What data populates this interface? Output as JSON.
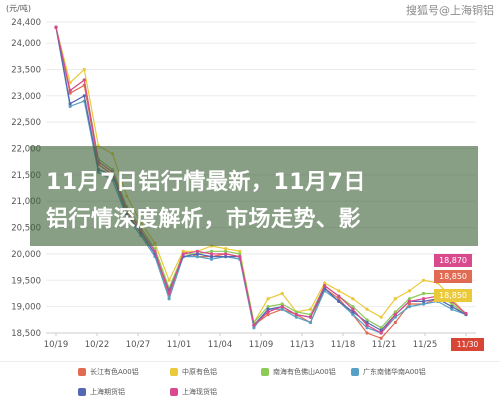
{
  "watermark": "搜狐号@上海铜铝",
  "banner": {
    "line1": "11月7日铝行情最新，11月7日",
    "line2": "铝行情深度解析，市场走势、影"
  },
  "price_tags": [
    {
      "label": "18,870",
      "color": "#d94a8c"
    },
    {
      "label": "18,850",
      "color": "#e06a52"
    },
    {
      "label": "18,850",
      "color": "#eac93a"
    }
  ],
  "date_tag": "11/30",
  "chart_data": {
    "type": "line",
    "ylabel": "(元/吨)",
    "ylim": [
      18500,
      24400
    ],
    "yticks": [
      "24,400",
      "24,000",
      "23,500",
      "23,000",
      "22,500",
      "22,000",
      "21,500",
      "21,000",
      "20,500",
      "20,000",
      "19,500",
      "19,000",
      "18,500"
    ],
    "xticks": [
      "10/19",
      "10/22",
      "10/27",
      "11/01",
      "11/04",
      "11/09",
      "11/13",
      "11/18",
      "11/21",
      "11/25",
      "11/30"
    ],
    "series": [
      {
        "name": "长江有色A00铝",
        "color": "#e06a52",
        "values": [
          24300,
          23050,
          23200,
          21700,
          21500,
          20800,
          20400,
          20000,
          19200,
          20050,
          19950,
          19950,
          20000,
          19950,
          18650,
          18850,
          18950,
          18850,
          18700,
          19350,
          19150,
          18850,
          18500,
          18400,
          18700,
          19050,
          19050,
          19150,
          19000,
          18850
        ]
      },
      {
        "name": "中原有色铝",
        "color": "#eac93a",
        "values": [
          24300,
          23250,
          23500,
          22050,
          21900,
          21100,
          20600,
          20200,
          19500,
          20050,
          20050,
          20150,
          20100,
          20050,
          18700,
          19150,
          19250,
          18900,
          18950,
          19450,
          19300,
          19150,
          18950,
          18800,
          19150,
          19300,
          19500,
          19450,
          19150,
          18850
        ]
      },
      {
        "name": "南海有色佛山A00铝",
        "color": "#8cc955",
        "values": [
          24300,
          23100,
          23300,
          21800,
          21600,
          20900,
          20500,
          20100,
          19350,
          20000,
          20000,
          20050,
          20050,
          20000,
          18700,
          19000,
          19050,
          18900,
          18850,
          19400,
          19200,
          19000,
          18750,
          18600,
          18900,
          19150,
          19250,
          19250,
          19050,
          18850
        ]
      },
      {
        "name": "广东南储华南A00铝",
        "color": "#55a0c4",
        "values": [
          24300,
          22800,
          22900,
          21550,
          21400,
          20700,
          20350,
          19950,
          19150,
          19950,
          19950,
          19900,
          19950,
          19900,
          18600,
          18950,
          18950,
          18800,
          18700,
          19300,
          19100,
          18850,
          18600,
          18500,
          18800,
          19000,
          19050,
          19100,
          18950,
          18850
        ]
      },
      {
        "name": "上海期货铝",
        "color": "#5566b5",
        "values": [
          24300,
          22850,
          23000,
          21600,
          21500,
          20750,
          20400,
          20000,
          19300,
          19950,
          20000,
          19950,
          19950,
          19950,
          18650,
          18950,
          19000,
          18850,
          18800,
          19350,
          19100,
          18900,
          18700,
          18550,
          18850,
          19100,
          19100,
          19150,
          19000,
          18850
        ]
      },
      {
        "name": "上海现货铝",
        "color": "#d94a8c",
        "values": [
          24300,
          23100,
          23300,
          21750,
          21550,
          20850,
          20450,
          20050,
          19250,
          20000,
          20050,
          20000,
          20000,
          19950,
          18650,
          18900,
          19000,
          18850,
          18800,
          19400,
          19200,
          18950,
          18650,
          18500,
          18850,
          19100,
          19150,
          19200,
          19100,
          18870
        ]
      }
    ]
  }
}
